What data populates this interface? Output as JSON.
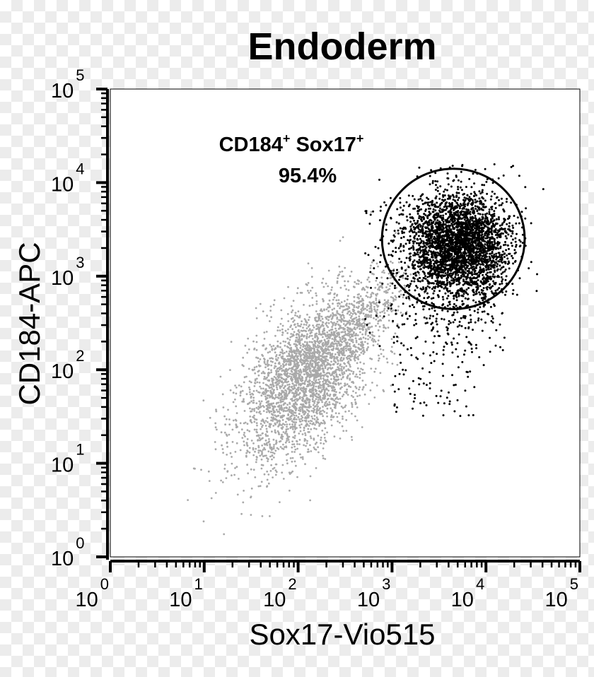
{
  "chart_data": {
    "type": "scatter",
    "title": "Endoderm",
    "xlabel": "Sox17-Vio515",
    "ylabel": "CD184-APC",
    "x_scale": "log",
    "y_scale": "log",
    "xlim": [
      1,
      100000
    ],
    "ylim": [
      1,
      100000
    ],
    "x_ticks": [
      {
        "base": "10",
        "exp": "0",
        "value": 1
      },
      {
        "base": "10",
        "exp": "1",
        "value": 10
      },
      {
        "base": "10",
        "exp": "2",
        "value": 100
      },
      {
        "base": "10",
        "exp": "3",
        "value": 1000
      },
      {
        "base": "10",
        "exp": "4",
        "value": 10000
      },
      {
        "base": "10",
        "exp": "5",
        "value": 100000
      }
    ],
    "y_ticks": [
      {
        "base": "10",
        "exp": "0",
        "value": 1
      },
      {
        "base": "10",
        "exp": "1",
        "value": 10
      },
      {
        "base": "10",
        "exp": "2",
        "value": 100
      },
      {
        "base": "10",
        "exp": "3",
        "value": 1000
      },
      {
        "base": "10",
        "exp": "4",
        "value": 10000
      },
      {
        "base": "10",
        "exp": "5",
        "value": 100000
      }
    ],
    "series": [
      {
        "color": "#a9a9a9",
        "center": [
          120,
          80
        ],
        "spread_decades": [
          0.35,
          0.42
        ]
      },
      {
        "color": "#000000",
        "center": [
          5000,
          2200
        ],
        "spread_decades": [
          0.28,
          0.28
        ]
      }
    ],
    "gate": {
      "shape": "ellipse",
      "center": [
        4500,
        2500
      ],
      "half_width_decades": 0.76,
      "half_height_decades": 0.75
    },
    "annotation": {
      "marker_a": "CD184",
      "sup_a": "+",
      "marker_b": "Sox17",
      "sup_b": "+",
      "percent": "95.4%"
    },
    "colors": {
      "negative_population": "#a9a9a9",
      "positive_population": "#000000"
    }
  }
}
